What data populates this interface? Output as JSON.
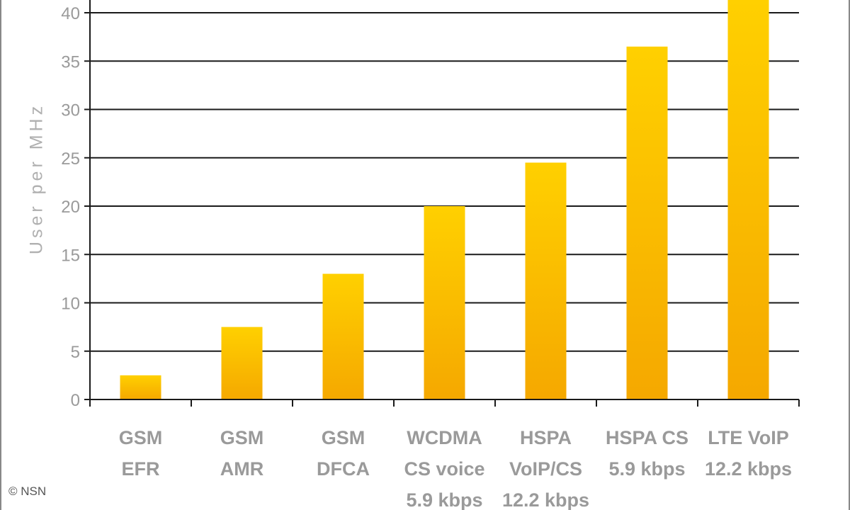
{
  "chart_data": {
    "type": "bar",
    "categories": [
      [
        "GSM",
        "EFR"
      ],
      [
        "GSM",
        "AMR"
      ],
      [
        "GSM",
        "DFCA"
      ],
      [
        "WCDMA",
        "CS voice",
        "5.9 kbps"
      ],
      [
        "HSPA",
        "VoIP/CS",
        "12.2 kbps"
      ],
      [
        "HSPA CS",
        "5.9 kbps"
      ],
      [
        "LTE VoIP",
        "12.2 kbps"
      ]
    ],
    "values": [
      2.5,
      7.5,
      13,
      20,
      24.5,
      36.5,
      42
    ],
    "ylabel": "User per MHz",
    "ylim": [
      0,
      40
    ],
    "yticks": [
      0,
      5,
      10,
      15,
      20,
      25,
      30,
      35,
      40
    ],
    "grid": true,
    "bar_color_top": "#ffd000",
    "bar_color_bottom": "#f5a800"
  },
  "copyright": "© NSN"
}
